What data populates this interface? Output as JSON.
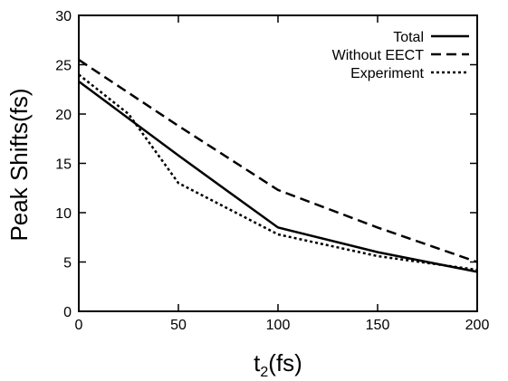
{
  "chart_data": {
    "type": "line",
    "xlabel_main": "t",
    "xlabel_sub": "2",
    "xlabel_rest": "(fs)",
    "ylabel": "Peak Shifts(fs)",
    "xlim": [
      0,
      200
    ],
    "ylim": [
      0,
      30
    ],
    "xticks": [
      0,
      50,
      100,
      150,
      200
    ],
    "yticks": [
      0,
      5,
      10,
      15,
      20,
      25,
      30
    ],
    "grid": false,
    "legend_position": "top-right",
    "series": [
      {
        "name": "Total",
        "style": "solid",
        "color": "#000000",
        "x": [
          0,
          50,
          100,
          150,
          200
        ],
        "y": [
          23.3,
          15.8,
          8.5,
          6.0,
          4.0
        ]
      },
      {
        "name": "Without EECT",
        "style": "dashed",
        "color": "#000000",
        "x": [
          0,
          50,
          100,
          150,
          200
        ],
        "y": [
          25.5,
          18.8,
          12.3,
          8.5,
          5.0
        ]
      },
      {
        "name": "Experiment",
        "style": "dotted",
        "color": "#000000",
        "x": [
          0,
          25,
          50,
          100,
          150,
          200
        ],
        "y": [
          24.0,
          20.0,
          13.0,
          7.8,
          5.6,
          4.2
        ]
      }
    ]
  }
}
